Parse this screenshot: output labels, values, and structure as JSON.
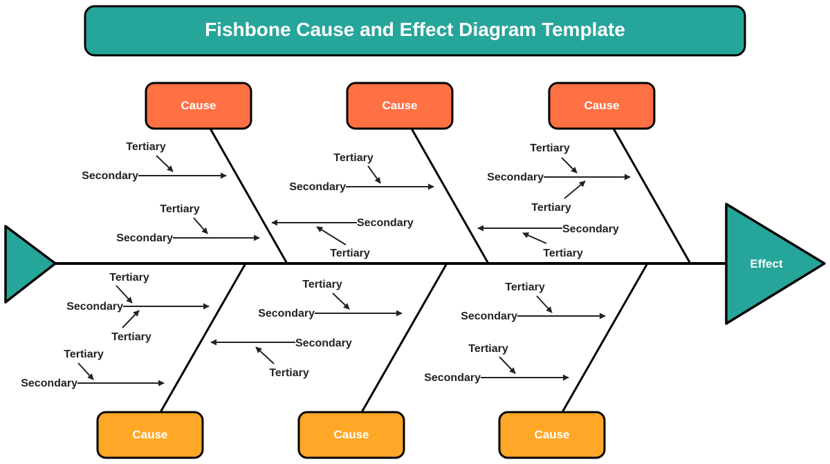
{
  "title": "Fishbone Cause and Effect Diagram Template",
  "effect": "Effect",
  "colors": {
    "title_bg": "#26a69a",
    "top_cause": "#ff7043",
    "bottom_cause": "#ffa726",
    "head_tail": "#26a69a",
    "line": "#000000",
    "text": "#222222"
  },
  "causes_top": [
    {
      "label": "Cause"
    },
    {
      "label": "Cause"
    },
    {
      "label": "Cause"
    }
  ],
  "causes_bottom": [
    {
      "label": "Cause"
    },
    {
      "label": "Cause"
    },
    {
      "label": "Cause"
    }
  ],
  "branches": {
    "top_1": [
      {
        "secondary": "Secondary",
        "tertiary": [
          "Tertiary"
        ]
      },
      {
        "secondary": "Secondary",
        "tertiary": [
          "Tertiary"
        ]
      }
    ],
    "top_2": [
      {
        "secondary": "Secondary",
        "tertiary": [
          "Tertiary"
        ]
      },
      {
        "secondary": "Secondary",
        "tertiary": [
          "Tertiary"
        ]
      }
    ],
    "top_3": [
      {
        "secondary": "Secondary",
        "tertiary": [
          "Tertiary",
          "Tertiary"
        ]
      },
      {
        "secondary": "Secondary",
        "tertiary": [
          "Tertiary"
        ]
      }
    ],
    "bottom_1": [
      {
        "secondary": "Secondary",
        "tertiary": [
          "Tertiary",
          "Tertiary"
        ]
      },
      {
        "secondary": "Secondary",
        "tertiary": [
          "Tertiary"
        ]
      }
    ],
    "bottom_2": [
      {
        "secondary": "Secondary",
        "tertiary": [
          "Tertiary"
        ]
      },
      {
        "secondary": "Secondary",
        "tertiary": [
          "Tertiary"
        ]
      }
    ],
    "bottom_3": [
      {
        "secondary": "Secondary",
        "tertiary": [
          "Tertiary"
        ]
      },
      {
        "secondary": "Secondary",
        "tertiary": [
          "Tertiary"
        ]
      }
    ]
  }
}
